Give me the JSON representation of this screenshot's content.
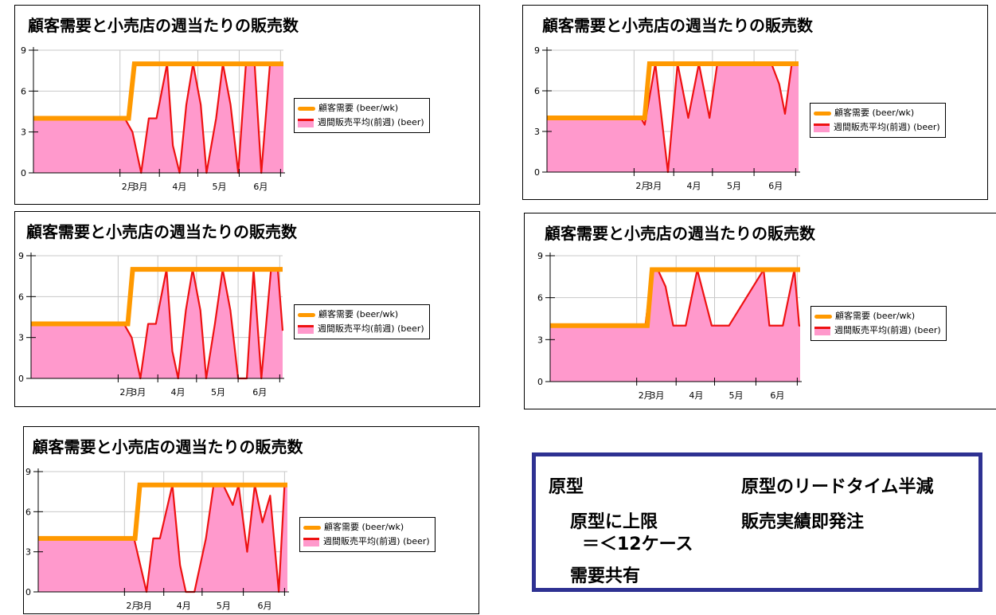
{
  "chart_data": [
    {
      "type": "area",
      "title": "顧客需要と小売店の週当たりの販売数",
      "x_ticks": [
        "2月",
        "3月",
        "4月",
        "5月",
        "6月"
      ],
      "yticks": [
        0,
        3,
        6,
        9
      ],
      "ylim": [
        0,
        9
      ],
      "legend": [
        "顧客需要 (beer/wk)",
        "週間販売平均(前週) (beer)"
      ],
      "legend_position": "right",
      "grid": true,
      "series": [
        {
          "name": "顧客需要 (beer/wk)",
          "type": "line",
          "color": "#ff9900",
          "x": [
            0,
            9.9,
            10.5,
            26
          ],
          "values": [
            4,
            4,
            8,
            8
          ]
        },
        {
          "name": "週間販売平均(前週) (beer)",
          "type": "area",
          "color": "#ee1111",
          "fill": "#ff99cc",
          "x": [
            0,
            9.5,
            10.3,
            11.2,
            12,
            12.8,
            13.9,
            14.5,
            15.2,
            15.9,
            16.6,
            17.4,
            18,
            19,
            19.7,
            20.5,
            21.3,
            22.1,
            23,
            23.7,
            24.6,
            25.3,
            26
          ],
          "values": [
            4,
            4,
            3,
            0,
            4,
            4,
            8,
            2,
            0,
            5,
            8,
            5,
            0,
            4,
            8,
            5,
            0,
            8,
            8,
            0,
            8,
            8,
            8
          ]
        }
      ]
    },
    {
      "type": "area",
      "title": "顧客需要と小売店の週当たりの販売数",
      "x_ticks": [
        "2月",
        "3月",
        "4月",
        "5月",
        "6月"
      ],
      "yticks": [
        0,
        3,
        6,
        9
      ],
      "ylim": [
        0,
        9
      ],
      "legend": [
        "顧客需要 (beer/wk)",
        "週間販売平均(前週) (beer)"
      ],
      "legend_position": "right",
      "grid": true,
      "series": [
        {
          "name": "顧客需要 (beer/wk)",
          "type": "line",
          "color": "#ff9900",
          "x": [
            0,
            10.1,
            10.6,
            26
          ],
          "values": [
            4,
            4,
            8,
            8
          ]
        },
        {
          "name": "週間販売平均(前週) (beer)",
          "type": "area",
          "color": "#ee1111",
          "fill": "#ff99cc",
          "x": [
            0,
            9.7,
            10.1,
            11.2,
            12.5,
            13.5,
            14.6,
            15.7,
            16.8,
            17.6,
            18.6,
            19.4,
            20.3,
            21.5,
            22.3,
            23.2,
            24,
            24.6,
            25.3,
            26
          ],
          "values": [
            4,
            4,
            3.5,
            8,
            0,
            8,
            4,
            8,
            4,
            8,
            8,
            8,
            8,
            8,
            8,
            8,
            6.5,
            4.3,
            8,
            8
          ]
        }
      ]
    },
    {
      "type": "area",
      "title": "顧客需要と小売店の週当たりの販売数",
      "x_ticks": [
        "2月",
        "3月",
        "4月",
        "5月",
        "6月"
      ],
      "yticks": [
        0,
        3,
        6,
        9
      ],
      "ylim": [
        0,
        9
      ],
      "legend": [
        "顧客需要 (beer/wk)",
        "週間販売平均(前週) (beer)"
      ],
      "legend_position": "right",
      "grid": true,
      "series": [
        {
          "name": "顧客需要 (beer/wk)",
          "type": "line",
          "color": "#ff9900",
          "x": [
            0,
            10,
            10.5,
            26
          ],
          "values": [
            4,
            4,
            8,
            8
          ]
        },
        {
          "name": "週間販売平均(前週) (beer)",
          "type": "area",
          "color": "#ee1111",
          "fill": "#ff99cc",
          "x": [
            0,
            9.6,
            10.4,
            11.3,
            12.1,
            12.9,
            14,
            14.6,
            15.2,
            16,
            16.7,
            17.5,
            18.1,
            19,
            19.8,
            20.6,
            21.4,
            22.3,
            23,
            23.8,
            24.8,
            25.5,
            26
          ],
          "values": [
            4,
            4,
            3,
            0,
            4,
            4,
            8,
            2,
            0,
            5,
            8,
            5,
            0,
            4,
            8,
            5,
            0,
            0,
            8,
            0,
            8,
            8,
            3.5
          ]
        }
      ]
    },
    {
      "type": "area",
      "title": "顧客需要と小売店の週当たりの販売数",
      "x_ticks": [
        "2月",
        "3月",
        "4月",
        "5月",
        "6月"
      ],
      "yticks": [
        0,
        3,
        6,
        9
      ],
      "ylim": [
        0,
        9
      ],
      "legend": [
        "顧客需要 (beer/wk)",
        "週間販売平均(前週) (beer)"
      ],
      "legend_position": "right",
      "grid": true,
      "series": [
        {
          "name": "顧客需要 (beer/wk)",
          "type": "line",
          "color": "#ff9900",
          "x": [
            0,
            10.1,
            10.6,
            26
          ],
          "values": [
            4,
            4,
            8,
            8
          ]
        },
        {
          "name": "週間販売平均(前週) (beer)",
          "type": "area",
          "color": "#ee1111",
          "fill": "#ff99cc",
          "x": [
            0,
            9.9,
            10.6,
            11.2,
            12,
            12.8,
            13.6,
            14.1,
            15.3,
            16.8,
            17.4,
            17.9,
            18.6,
            22.2,
            22.8,
            23.4,
            24.2,
            25.4,
            25.9,
            26
          ],
          "values": [
            4,
            4,
            8,
            8,
            6.8,
            4,
            4,
            4,
            8,
            4,
            4,
            4,
            4,
            8,
            4,
            4,
            4,
            8,
            4,
            4
          ]
        }
      ]
    },
    {
      "type": "area",
      "title": "顧客需要と小売店の週当たりの販売数",
      "x_ticks": [
        "2月",
        "3月",
        "4月",
        "5月",
        "6月"
      ],
      "yticks": [
        0,
        3,
        6,
        9
      ],
      "ylim": [
        0,
        9
      ],
      "legend": [
        "顧客需要 (beer/wk)",
        "週間販売平均(前週) (beer)"
      ],
      "legend_position": "right",
      "grid": true,
      "series": [
        {
          "name": "顧客需要 (beer/wk)",
          "type": "line",
          "color": "#ff9900",
          "x": [
            0,
            10.1,
            10.6,
            26
          ],
          "values": [
            4,
            4,
            8,
            8
          ]
        },
        {
          "name": "週間販売平均(前週) (beer)",
          "type": "area",
          "color": "#ee1111",
          "fill": "#ff99cc",
          "x": [
            0,
            10,
            11.3,
            12,
            12.7,
            14,
            14.8,
            15.4,
            16.3,
            17.5,
            18.3,
            19.3,
            20.3,
            20.9,
            21.8,
            22.6,
            23.4,
            24.2,
            25.1,
            25.7,
            26
          ],
          "values": [
            4,
            4,
            0,
            4,
            4,
            8,
            2,
            0,
            0,
            4,
            8,
            8,
            6.5,
            8,
            3,
            8,
            5.2,
            7.2,
            0,
            8,
            8
          ]
        }
      ]
    }
  ],
  "notes": {
    "original": "原型",
    "half_leadtime": "原型のリードタイム半減",
    "cap_line1": "原型に上限",
    "cap_line2": "＝＜12ケース",
    "sales_order": "販売実績即発注",
    "demand_sharing": "需要共有"
  }
}
